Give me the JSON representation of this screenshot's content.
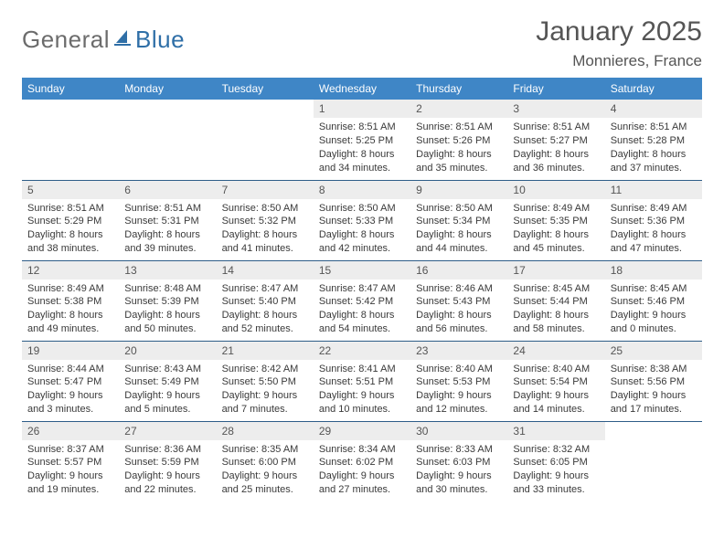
{
  "brand": {
    "part1": "General",
    "part2": "Blue"
  },
  "title": "January 2025",
  "location": "Monnieres, France",
  "colors": {
    "header_bg": "#3f86c6",
    "row_divider": "#2e5d88",
    "daynum_bg": "#ededed",
    "text": "#444444",
    "title_text": "#555555",
    "logo_gray": "#6c6c6c",
    "logo_blue": "#2f6fa7"
  },
  "weekdays": [
    "Sunday",
    "Monday",
    "Tuesday",
    "Wednesday",
    "Thursday",
    "Friday",
    "Saturday"
  ],
  "weeks": [
    [
      null,
      null,
      null,
      {
        "n": "1",
        "sr": "8:51 AM",
        "ss": "5:25 PM",
        "dl1": "Daylight: 8 hours",
        "dl2": "and 34 minutes."
      },
      {
        "n": "2",
        "sr": "8:51 AM",
        "ss": "5:26 PM",
        "dl1": "Daylight: 8 hours",
        "dl2": "and 35 minutes."
      },
      {
        "n": "3",
        "sr": "8:51 AM",
        "ss": "5:27 PM",
        "dl1": "Daylight: 8 hours",
        "dl2": "and 36 minutes."
      },
      {
        "n": "4",
        "sr": "8:51 AM",
        "ss": "5:28 PM",
        "dl1": "Daylight: 8 hours",
        "dl2": "and 37 minutes."
      }
    ],
    [
      {
        "n": "5",
        "sr": "8:51 AM",
        "ss": "5:29 PM",
        "dl1": "Daylight: 8 hours",
        "dl2": "and 38 minutes."
      },
      {
        "n": "6",
        "sr": "8:51 AM",
        "ss": "5:31 PM",
        "dl1": "Daylight: 8 hours",
        "dl2": "and 39 minutes."
      },
      {
        "n": "7",
        "sr": "8:50 AM",
        "ss": "5:32 PM",
        "dl1": "Daylight: 8 hours",
        "dl2": "and 41 minutes."
      },
      {
        "n": "8",
        "sr": "8:50 AM",
        "ss": "5:33 PM",
        "dl1": "Daylight: 8 hours",
        "dl2": "and 42 minutes."
      },
      {
        "n": "9",
        "sr": "8:50 AM",
        "ss": "5:34 PM",
        "dl1": "Daylight: 8 hours",
        "dl2": "and 44 minutes."
      },
      {
        "n": "10",
        "sr": "8:49 AM",
        "ss": "5:35 PM",
        "dl1": "Daylight: 8 hours",
        "dl2": "and 45 minutes."
      },
      {
        "n": "11",
        "sr": "8:49 AM",
        "ss": "5:36 PM",
        "dl1": "Daylight: 8 hours",
        "dl2": "and 47 minutes."
      }
    ],
    [
      {
        "n": "12",
        "sr": "8:49 AM",
        "ss": "5:38 PM",
        "dl1": "Daylight: 8 hours",
        "dl2": "and 49 minutes."
      },
      {
        "n": "13",
        "sr": "8:48 AM",
        "ss": "5:39 PM",
        "dl1": "Daylight: 8 hours",
        "dl2": "and 50 minutes."
      },
      {
        "n": "14",
        "sr": "8:47 AM",
        "ss": "5:40 PM",
        "dl1": "Daylight: 8 hours",
        "dl2": "and 52 minutes."
      },
      {
        "n": "15",
        "sr": "8:47 AM",
        "ss": "5:42 PM",
        "dl1": "Daylight: 8 hours",
        "dl2": "and 54 minutes."
      },
      {
        "n": "16",
        "sr": "8:46 AM",
        "ss": "5:43 PM",
        "dl1": "Daylight: 8 hours",
        "dl2": "and 56 minutes."
      },
      {
        "n": "17",
        "sr": "8:45 AM",
        "ss": "5:44 PM",
        "dl1": "Daylight: 8 hours",
        "dl2": "and 58 minutes."
      },
      {
        "n": "18",
        "sr": "8:45 AM",
        "ss": "5:46 PM",
        "dl1": "Daylight: 9 hours",
        "dl2": "and 0 minutes."
      }
    ],
    [
      {
        "n": "19",
        "sr": "8:44 AM",
        "ss": "5:47 PM",
        "dl1": "Daylight: 9 hours",
        "dl2": "and 3 minutes."
      },
      {
        "n": "20",
        "sr": "8:43 AM",
        "ss": "5:49 PM",
        "dl1": "Daylight: 9 hours",
        "dl2": "and 5 minutes."
      },
      {
        "n": "21",
        "sr": "8:42 AM",
        "ss": "5:50 PM",
        "dl1": "Daylight: 9 hours",
        "dl2": "and 7 minutes."
      },
      {
        "n": "22",
        "sr": "8:41 AM",
        "ss": "5:51 PM",
        "dl1": "Daylight: 9 hours",
        "dl2": "and 10 minutes."
      },
      {
        "n": "23",
        "sr": "8:40 AM",
        "ss": "5:53 PM",
        "dl1": "Daylight: 9 hours",
        "dl2": "and 12 minutes."
      },
      {
        "n": "24",
        "sr": "8:40 AM",
        "ss": "5:54 PM",
        "dl1": "Daylight: 9 hours",
        "dl2": "and 14 minutes."
      },
      {
        "n": "25",
        "sr": "8:38 AM",
        "ss": "5:56 PM",
        "dl1": "Daylight: 9 hours",
        "dl2": "and 17 minutes."
      }
    ],
    [
      {
        "n": "26",
        "sr": "8:37 AM",
        "ss": "5:57 PM",
        "dl1": "Daylight: 9 hours",
        "dl2": "and 19 minutes."
      },
      {
        "n": "27",
        "sr": "8:36 AM",
        "ss": "5:59 PM",
        "dl1": "Daylight: 9 hours",
        "dl2": "and 22 minutes."
      },
      {
        "n": "28",
        "sr": "8:35 AM",
        "ss": "6:00 PM",
        "dl1": "Daylight: 9 hours",
        "dl2": "and 25 minutes."
      },
      {
        "n": "29",
        "sr": "8:34 AM",
        "ss": "6:02 PM",
        "dl1": "Daylight: 9 hours",
        "dl2": "and 27 minutes."
      },
      {
        "n": "30",
        "sr": "8:33 AM",
        "ss": "6:03 PM",
        "dl1": "Daylight: 9 hours",
        "dl2": "and 30 minutes."
      },
      {
        "n": "31",
        "sr": "8:32 AM",
        "ss": "6:05 PM",
        "dl1": "Daylight: 9 hours",
        "dl2": "and 33 minutes."
      },
      null
    ]
  ],
  "labels": {
    "sunrise_prefix": "Sunrise: ",
    "sunset_prefix": "Sunset: "
  }
}
